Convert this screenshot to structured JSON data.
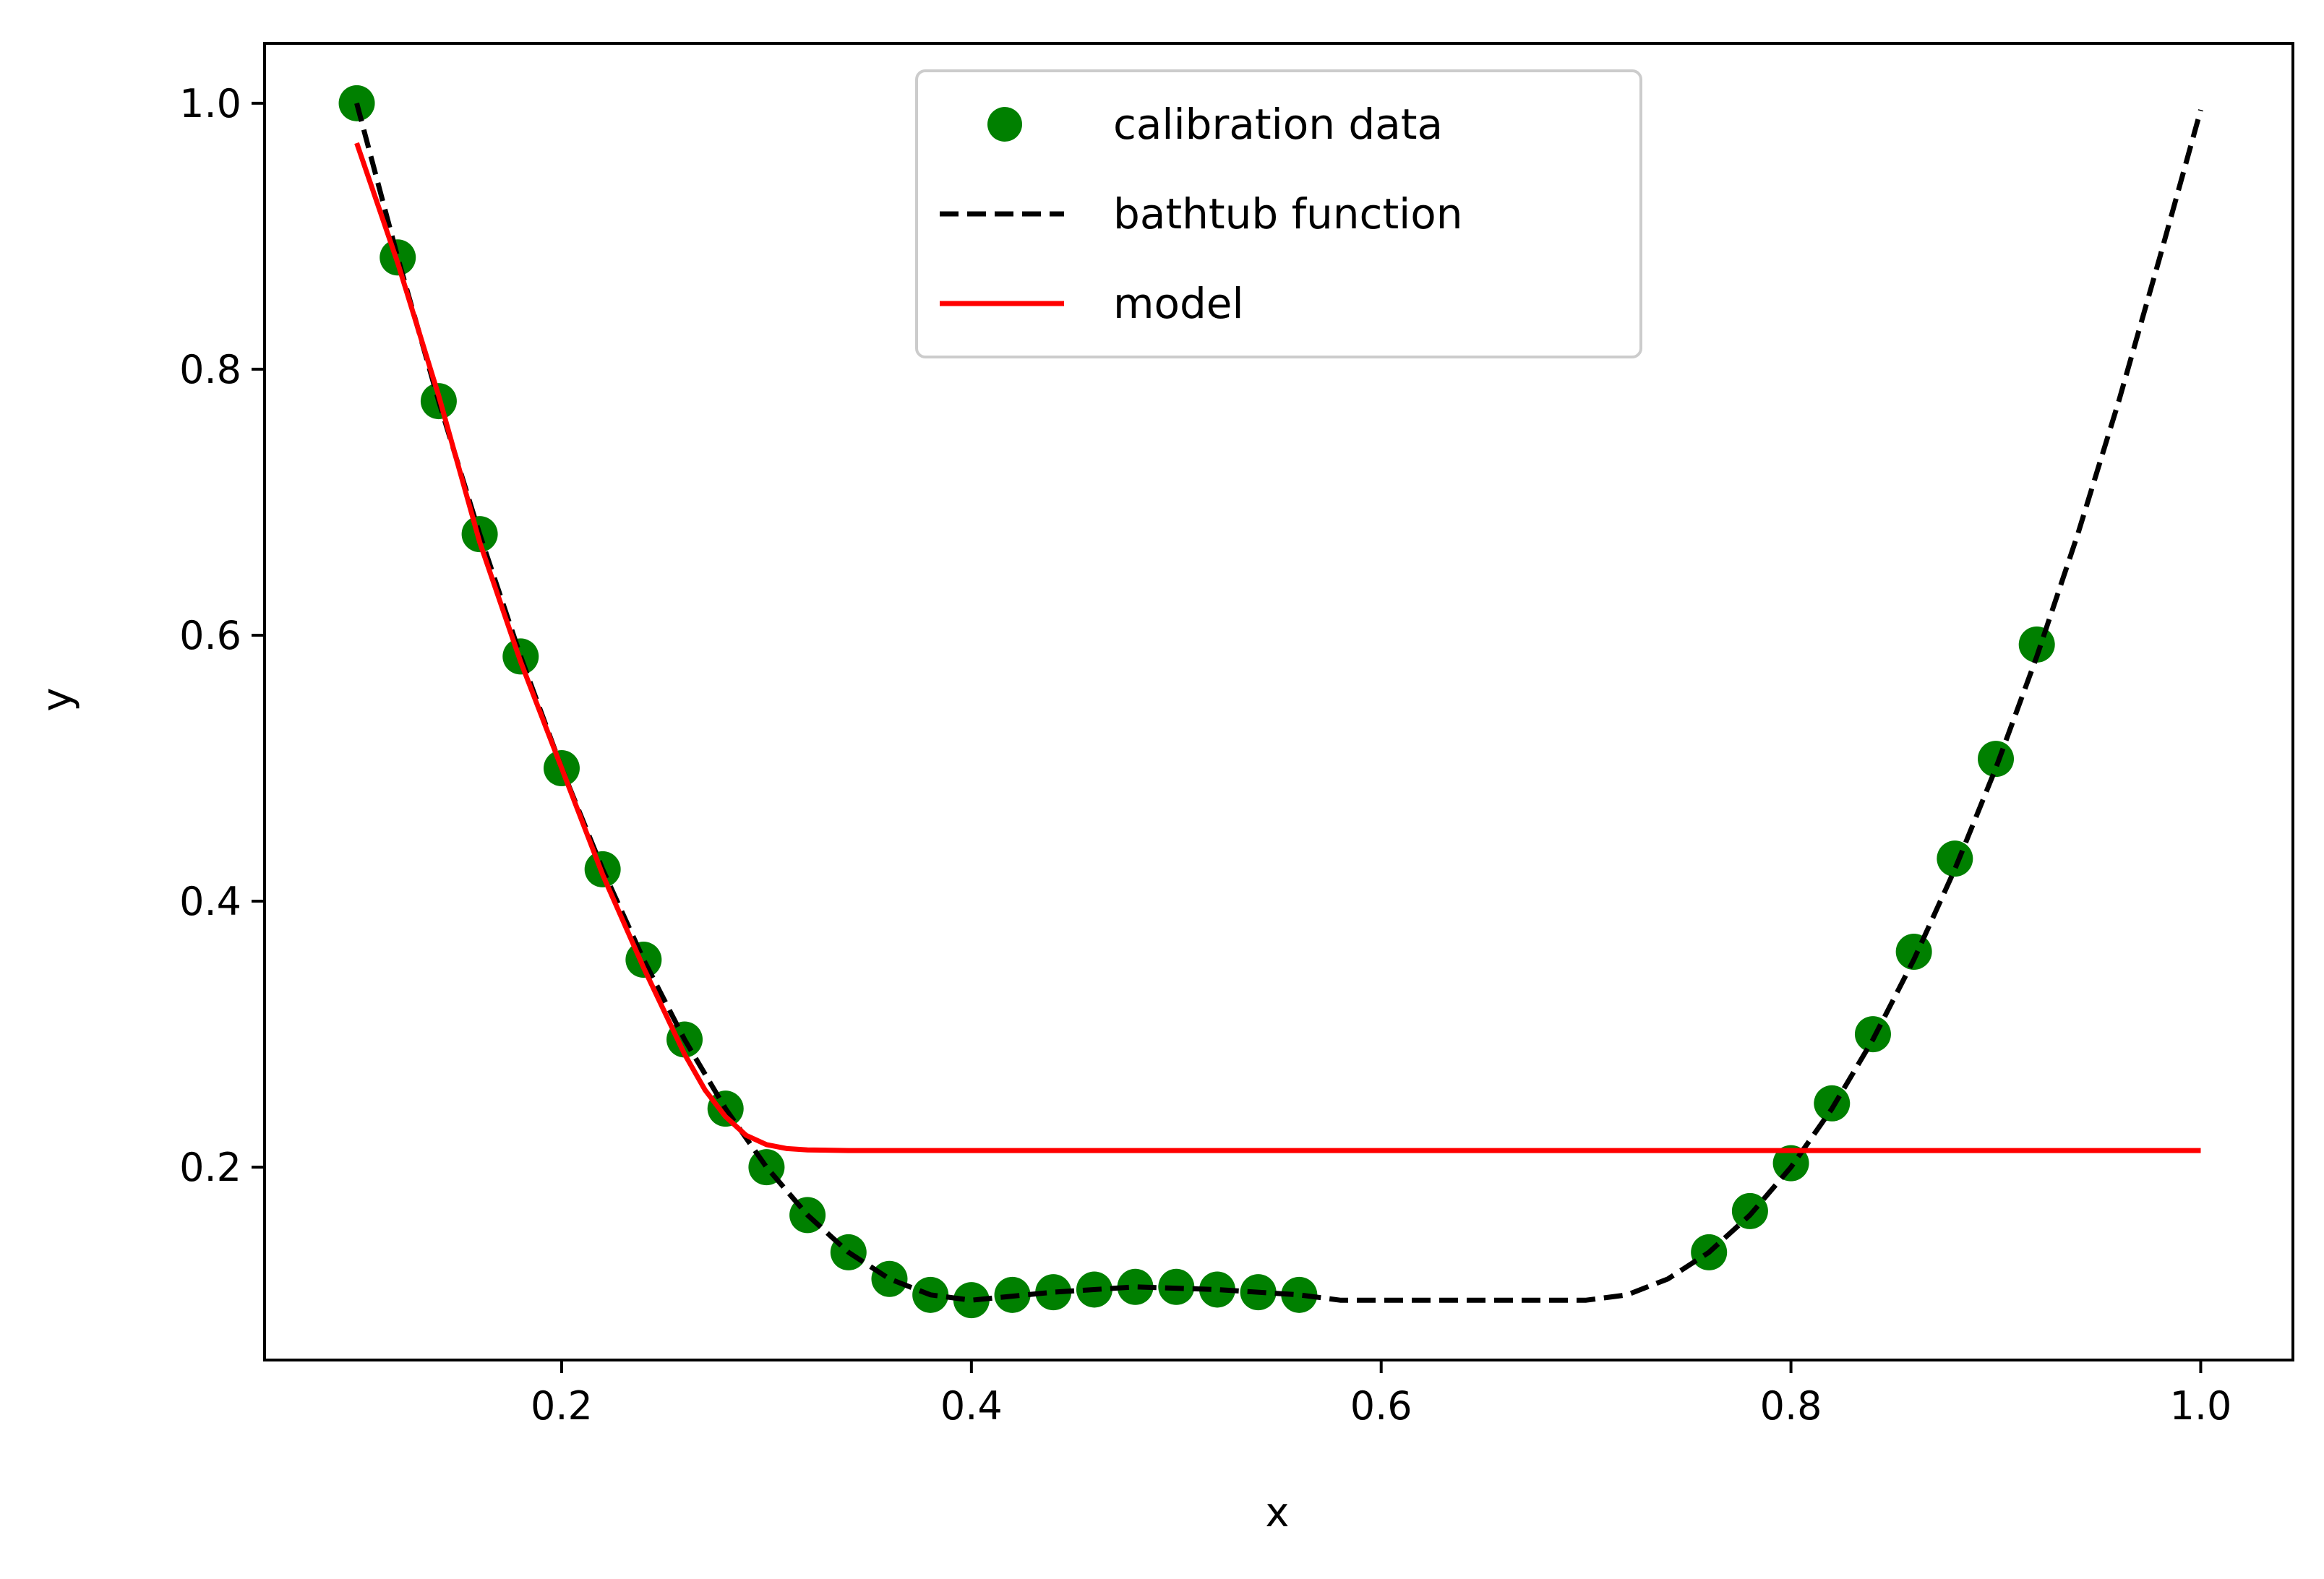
{
  "chart_data": {
    "type": "line",
    "xlabel": "x",
    "ylabel": "y",
    "xlim": [
      0.055,
      1.045
    ],
    "ylim": [
      0.055,
      1.045
    ],
    "xticks": [
      "0.2",
      "0.4",
      "0.6",
      "0.8",
      "1.0"
    ],
    "yticks": [
      "0.2",
      "0.4",
      "0.6",
      "0.8",
      "1.0"
    ],
    "grid": false,
    "legend_position": "top-center",
    "series": [
      {
        "name": "calibration data",
        "kind": "scatter",
        "color": "#008000",
        "x": [
          0.1,
          0.12,
          0.14,
          0.16,
          0.18,
          0.2,
          0.22,
          0.24,
          0.26,
          0.28,
          0.3,
          0.32,
          0.34,
          0.36,
          0.38,
          0.4,
          0.42,
          0.44,
          0.46,
          0.48,
          0.5,
          0.52,
          0.54,
          0.56,
          0.76,
          0.78,
          0.8,
          0.82,
          0.84,
          0.86,
          0.88,
          0.9,
          0.92
        ],
        "y": [
          1.0,
          0.884,
          0.776,
          0.676,
          0.584,
          0.5,
          0.424,
          0.356,
          0.296,
          0.244,
          0.2,
          0.164,
          0.136,
          0.116,
          0.104,
          0.1,
          0.104,
          0.106,
          0.108,
          0.11,
          0.11,
          0.108,
          0.106,
          0.104,
          0.136,
          0.167,
          0.203,
          0.248,
          0.3,
          0.362,
          0.432,
          0.507,
          0.593
        ]
      },
      {
        "name": "bathtub function",
        "kind": "line",
        "style": "dashed",
        "color": "#000000",
        "x": [
          0.1,
          0.12,
          0.14,
          0.16,
          0.18,
          0.2,
          0.22,
          0.24,
          0.26,
          0.28,
          0.3,
          0.32,
          0.34,
          0.36,
          0.38,
          0.4,
          0.44,
          0.48,
          0.52,
          0.56,
          0.58,
          0.62,
          0.66,
          0.7,
          0.72,
          0.74,
          0.76,
          0.78,
          0.8,
          0.82,
          0.84,
          0.86,
          0.88,
          0.9,
          0.92,
          0.94,
          0.96,
          0.98,
          1.0
        ],
        "y": [
          1.0,
          0.884,
          0.776,
          0.676,
          0.584,
          0.5,
          0.424,
          0.356,
          0.296,
          0.244,
          0.2,
          0.164,
          0.136,
          0.116,
          0.104,
          0.1,
          0.106,
          0.11,
          0.108,
          0.104,
          0.1,
          0.1,
          0.1,
          0.1,
          0.104,
          0.116,
          0.136,
          0.164,
          0.2,
          0.244,
          0.296,
          0.356,
          0.424,
          0.5,
          0.584,
          0.676,
          0.776,
          0.884,
          0.995
        ]
      },
      {
        "name": "model",
        "kind": "line",
        "style": "solid",
        "color": "#ff0000",
        "x": [
          0.1,
          0.12,
          0.14,
          0.16,
          0.18,
          0.2,
          0.22,
          0.24,
          0.26,
          0.27,
          0.28,
          0.29,
          0.3,
          0.31,
          0.32,
          0.34,
          0.36,
          0.4,
          0.5,
          0.6,
          0.7,
          0.8,
          0.9,
          1.0
        ],
        "y": [
          0.97,
          0.88,
          0.78,
          0.67,
          0.58,
          0.5,
          0.42,
          0.35,
          0.285,
          0.258,
          0.238,
          0.224,
          0.217,
          0.214,
          0.213,
          0.2125,
          0.2125,
          0.2125,
          0.2125,
          0.2125,
          0.2125,
          0.2125,
          0.2125,
          0.2125
        ]
      }
    ]
  }
}
